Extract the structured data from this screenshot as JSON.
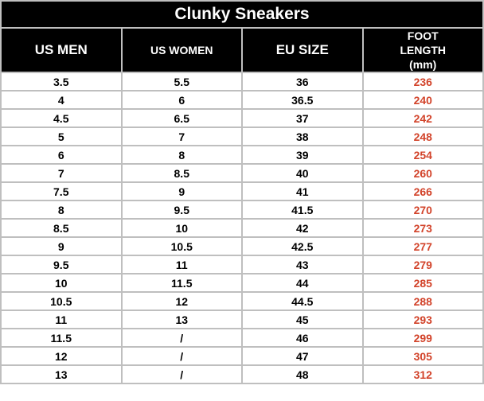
{
  "title": "Clunky Sneakers",
  "headers": [
    "US MEN",
    "US WOMEN",
    "EU SIZE",
    "FOOT LENGTH (mm)"
  ],
  "highlight_color": "#d2432a",
  "rows": [
    [
      "3.5",
      "5.5",
      "36",
      "236"
    ],
    [
      "4",
      "6",
      "36.5",
      "240"
    ],
    [
      "4.5",
      "6.5",
      "37",
      "242"
    ],
    [
      "5",
      "7",
      "38",
      "248"
    ],
    [
      "6",
      "8",
      "39",
      "254"
    ],
    [
      "7",
      "8.5",
      "40",
      "260"
    ],
    [
      "7.5",
      "9",
      "41",
      "266"
    ],
    [
      "8",
      "9.5",
      "41.5",
      "270"
    ],
    [
      "8.5",
      "10",
      "42",
      "273"
    ],
    [
      "9",
      "10.5",
      "42.5",
      "277"
    ],
    [
      "9.5",
      "11",
      "43",
      "279"
    ],
    [
      "10",
      "11.5",
      "44",
      "285"
    ],
    [
      "10.5",
      "12",
      "44.5",
      "288"
    ],
    [
      "11",
      "13",
      "45",
      "293"
    ],
    [
      "11.5",
      "/",
      "46",
      "299"
    ],
    [
      "12",
      "/",
      "47",
      "305"
    ],
    [
      "13",
      "/",
      "48",
      "312"
    ]
  ]
}
